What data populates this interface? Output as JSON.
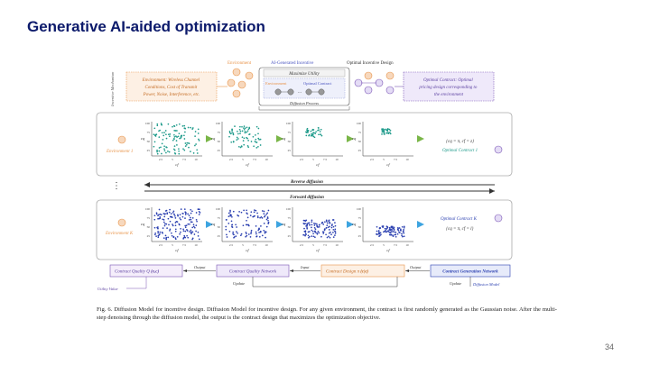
{
  "slide": {
    "title": "Generative AI-aided optimization",
    "page_number": "34"
  },
  "figure": {
    "top": {
      "side_label": "Incentive Mechanism",
      "env_box_text": [
        "Environment: Wireless Channel",
        "Conditions, Cost of Transmit",
        "Power, Noise, Interference, etc."
      ],
      "environment_label": "Environment",
      "ai_incentive_label": "AI-Generated Incentive",
      "optimal_design_label": "Optimal Incentive Design",
      "maximize_utility": "Maximize Utility",
      "inner_environment": "Environment",
      "optimal_contract": "Optimal Contract",
      "diffusion_process": "Diffusion Process",
      "optimal_contract_box": [
        "Optimal Contract: Optimal",
        "pricing design corresponding to",
        "the environment"
      ]
    },
    "environments": [
      {
        "name": "Environment 1",
        "result_formula": "{cq = π, cf = z}",
        "result_label": "Optimal Contract 1"
      },
      {
        "name": "Environment K",
        "result_formula": "{cq = π, cf = l}",
        "result_label": "Optimal Contract K"
      }
    ],
    "ellipsis": "⋮",
    "axis": {
      "y_label": "cq",
      "x_label": "cf",
      "y_ticks": [
        "100",
        "75",
        "50",
        "25"
      ],
      "x_ticks": [
        "2.5",
        "5",
        "7.5",
        "10"
      ]
    },
    "reverse_diffusion": "Reverse diffusion",
    "forward_diffusion": "Forward diffusion",
    "bottom": {
      "contract_quality": "Contract Quality Q",
      "contract_quality_arg": "(e,c)",
      "output1": "Output",
      "contract_quality_network": "Contract Quality Network",
      "input": "Input",
      "contract_design": "Contract Design",
      "contract_design_arg": "π",
      "contract_design_cond": "(c|e)",
      "output2": "Output",
      "contract_generation_network": "Contract Generation Network",
      "update1": "Update",
      "update2": "Update",
      "diffusion_model": "Diffusion Model",
      "utility_value": "Utility Value"
    },
    "colors": {
      "orange": "#e8944a",
      "teal": "#1d9a8a",
      "blue": "#2a3fb0",
      "purple": "#7a55b5",
      "green_arrow": "#7ab648",
      "blue_arrow": "#3da4e0"
    }
  },
  "caption": "Fig. 6.  Diffusion Model for incentive design. Diffusion Model for incentive design. For any given environment, the contract is first randomly generated as the Gaussian noise. After the multi-step denoising through the diffusion model, the output is the contract design that maximizes the optimization objective."
}
